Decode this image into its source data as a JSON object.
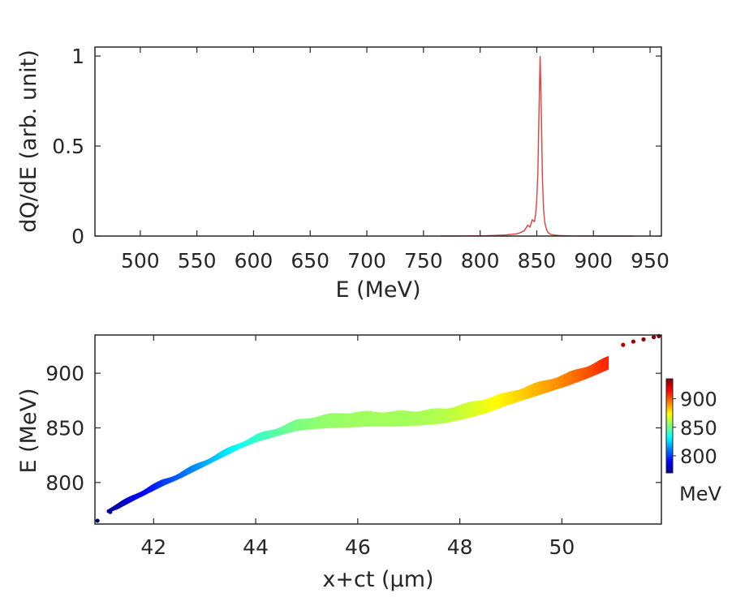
{
  "chart_data": [
    {
      "type": "line",
      "xlabel": "E (MeV)",
      "ylabel": "dQ/dE (arb. unit)",
      "xlim": [
        460,
        960
      ],
      "ylim": [
        0,
        1.05
      ],
      "xticks": [
        "500",
        "550",
        "600",
        "650",
        "700",
        "750",
        "800",
        "850",
        "900",
        "950"
      ],
      "yticks": [
        "0",
        "0.5",
        "1"
      ],
      "series": [
        {
          "name": "dQ/dE",
          "color": "#e04040",
          "x": [
            765,
            790,
            805,
            815,
            822,
            828,
            832,
            836,
            839,
            842,
            844,
            846,
            848,
            849,
            850,
            851,
            852,
            853,
            854,
            855,
            856,
            857,
            858,
            859,
            860,
            862,
            865,
            870,
            880,
            900,
            935
          ],
          "y": [
            0,
            0.001,
            0.002,
            0.004,
            0.006,
            0.01,
            0.012,
            0.02,
            0.03,
            0.06,
            0.05,
            0.09,
            0.08,
            0.12,
            0.2,
            0.35,
            0.7,
            1.0,
            0.7,
            0.32,
            0.15,
            0.08,
            0.05,
            0.03,
            0.02,
            0.01,
            0.006,
            0.003,
            0.001,
            0,
            0
          ]
        }
      ]
    },
    {
      "type": "scatter",
      "xlabel": "x+ct (μm)",
      "ylabel": "E (MeV)",
      "xlim": [
        40.85,
        51.95
      ],
      "ylim": [
        762,
        935
      ],
      "xticks": [
        "42",
        "44",
        "46",
        "48",
        "50"
      ],
      "yticks": [
        "800",
        "850",
        "900"
      ],
      "colormap": "jet",
      "color_range": [
        770,
        935
      ],
      "colorbar": {
        "ticks": [
          "800",
          "850",
          "900"
        ],
        "label": "MeV"
      },
      "centerline": {
        "x": [
          41.1,
          41.3,
          41.6,
          41.9,
          42.2,
          42.5,
          42.8,
          43.1,
          43.4,
          43.7,
          44.0,
          44.4,
          44.8,
          45.2,
          45.7,
          46.2,
          46.7,
          47.2,
          47.7,
          48.1,
          48.5,
          48.9,
          49.3,
          49.7,
          50.1,
          50.5,
          50.9
        ],
        "y": [
          774,
          778,
          786,
          793,
          800,
          806,
          813,
          820,
          827,
          834,
          840,
          846,
          852,
          855,
          857,
          858,
          858,
          859,
          861,
          865,
          870,
          876,
          882,
          888,
          894,
          901,
          909
        ],
        "halfwidth": [
          1,
          1.5,
          2,
          2,
          2,
          2,
          2,
          2,
          2,
          2,
          2.5,
          3,
          4,
          5,
          6,
          6,
          6,
          6,
          6,
          6,
          6,
          5,
          5,
          5,
          5,
          5,
          5
        ]
      },
      "points": [
        {
          "x": 40.9,
          "y": 765
        },
        {
          "x": 41.15,
          "y": 773
        },
        {
          "x": 51.2,
          "y": 926
        },
        {
          "x": 51.4,
          "y": 929
        },
        {
          "x": 51.6,
          "y": 931
        },
        {
          "x": 51.8,
          "y": 933
        },
        {
          "x": 51.9,
          "y": 934
        }
      ]
    }
  ]
}
